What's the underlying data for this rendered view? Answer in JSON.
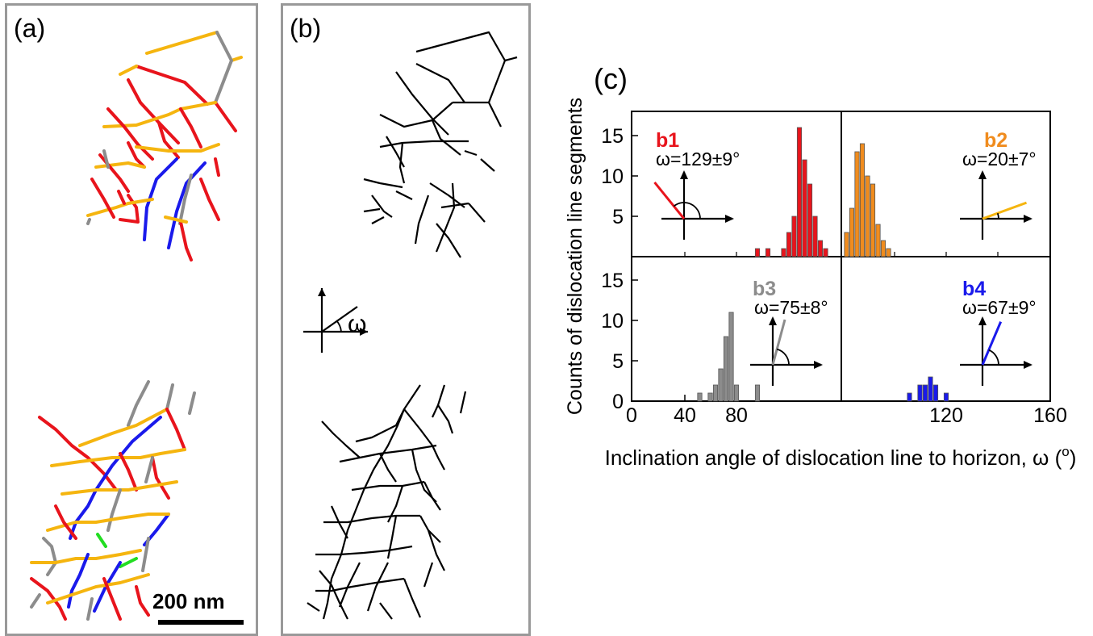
{
  "panel_labels": {
    "a": "(a)",
    "b": "(b)",
    "c": "(c)"
  },
  "scale_bar": {
    "label": "200 nm"
  },
  "omega_symbol": "ω",
  "colors": {
    "b1": "#e8141c",
    "b2": "#f5b50f",
    "b3": "#8c8c8c",
    "b4": "#1a1aeb",
    "other": "#22dd22",
    "line": "#000000",
    "b2_bar": "#f08c1e"
  },
  "chart_data": {
    "type": "bar",
    "ylabel": "Counts of dislocation line segments",
    "xlabel": "Inclination angle of dislocation line to horizon, ω (o)",
    "xlim": [
      0,
      160
    ],
    "ylim": [
      0,
      18
    ],
    "x_ticks": [
      "0",
      "40",
      "80",
      "120",
      "160"
    ],
    "y_ticks": [
      "0",
      "5",
      "10",
      "15"
    ],
    "bin_width": 4,
    "panels": [
      {
        "id": "b1",
        "label": "b1",
        "annotation": "ω=129±9°",
        "color": "#e8141c",
        "x": [
          96,
          104,
          116,
          120,
          124,
          128,
          132,
          136,
          140,
          144,
          148
        ],
        "values": [
          1,
          1,
          1,
          3,
          5,
          16,
          12,
          9,
          5,
          2,
          1
        ]
      },
      {
        "id": "b2",
        "label": "b2",
        "annotation": "ω=20±7°",
        "color": "#f08c1e",
        "x": [
          4,
          8,
          12,
          16,
          20,
          24,
          28,
          32,
          36
        ],
        "values": [
          3,
          6,
          13,
          14,
          10,
          9,
          4,
          2,
          1
        ]
      },
      {
        "id": "b3",
        "label": "b3",
        "annotation": "ω=75±8°",
        "color": "#8c8c8c",
        "x": [
          52,
          60,
          64,
          68,
          72,
          76,
          80,
          96
        ],
        "values": [
          1,
          1,
          2,
          4,
          8,
          11,
          2,
          2
        ]
      },
      {
        "id": "b4",
        "label": "b4",
        "annotation": "ω=67±9°",
        "color": "#1a1aeb",
        "x": [
          52,
          60,
          64,
          68,
          72,
          80
        ],
        "values": [
          1,
          2,
          2,
          3,
          2,
          1
        ]
      }
    ]
  }
}
